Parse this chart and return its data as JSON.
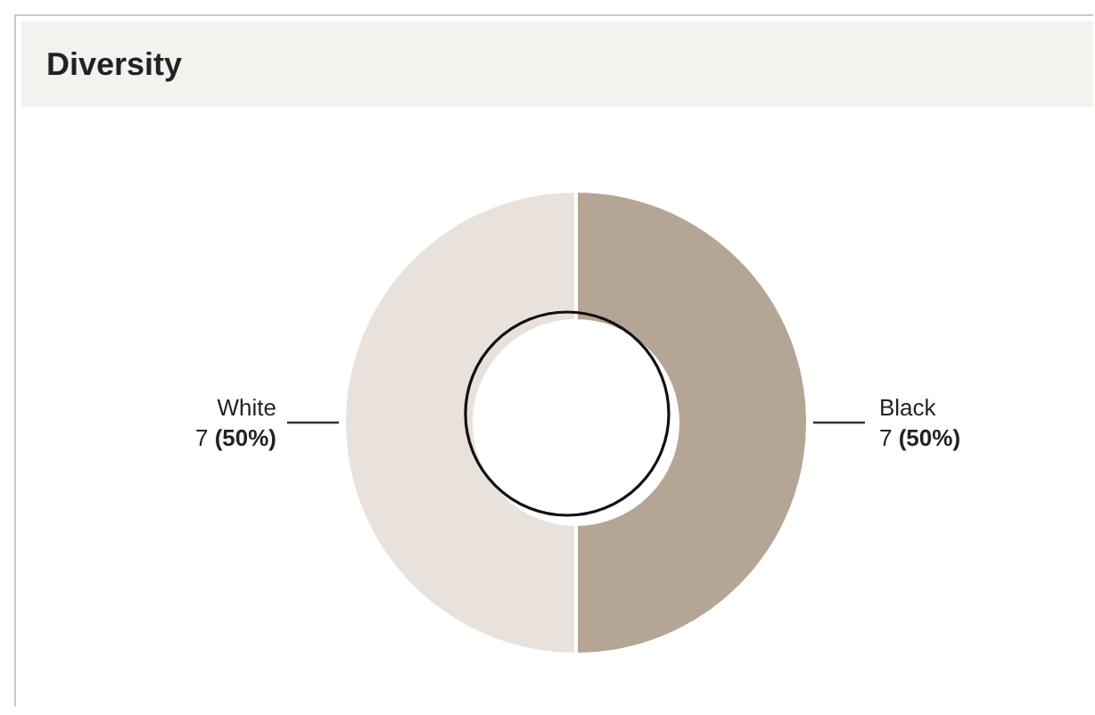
{
  "chart_data": {
    "type": "donut",
    "title": "Diversity",
    "categories": [
      "Black",
      "White"
    ],
    "values": [
      7,
      7
    ],
    "colors": [
      "#b5a594",
      "#e9e2dc"
    ],
    "value_labels": [
      "7 (50%)",
      "7 (50%)"
    ]
  }
}
